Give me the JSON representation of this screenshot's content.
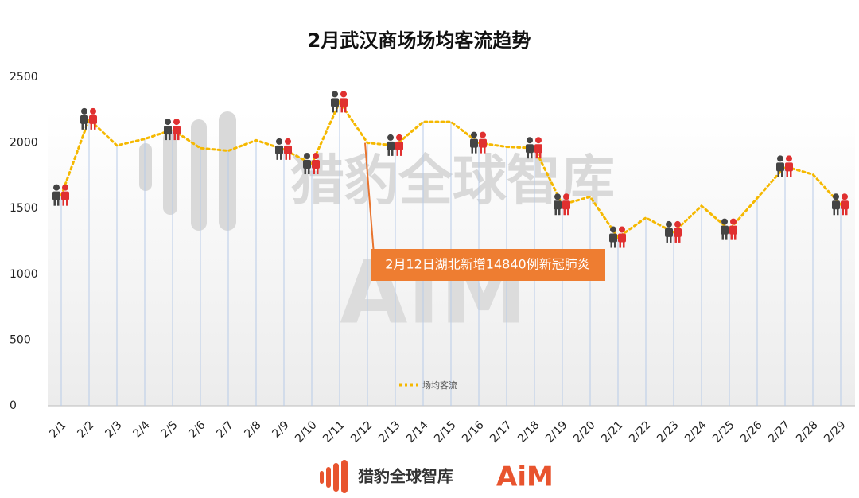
{
  "chart_data": {
    "type": "line",
    "title": "2月武汉商场场均客流趋势",
    "categories": [
      "2/1",
      "2/2",
      "2/3",
      "2/4",
      "2/5",
      "2/6",
      "2/7",
      "2/8",
      "2/9",
      "2/10",
      "2/11",
      "2/12",
      "2/13",
      "2/14",
      "2/15",
      "2/16",
      "2/17",
      "2/18",
      "2/19",
      "2/20",
      "2/21",
      "2/22",
      "2/23",
      "2/24",
      "2/25",
      "2/26",
      "2/27",
      "2/28",
      "2/29"
    ],
    "series": [
      {
        "name": "场均客流",
        "color": "#f5b800",
        "values": [
          1600,
          2180,
          1980,
          2030,
          2100,
          1960,
          1940,
          2020,
          1950,
          1840,
          2310,
          2000,
          1980,
          2160,
          2160,
          2000,
          1970,
          1960,
          1530,
          1590,
          1280,
          1430,
          1320,
          1520,
          1340,
          1580,
          1820,
          1760,
          1530
        ]
      }
    ],
    "ylim": [
      0,
      2500
    ],
    "yticks": [
      0,
      500,
      1000,
      1500,
      2000,
      2500
    ],
    "annotation": "2月12日湖北新增14840例新冠肺炎",
    "watermark": [
      "猎豹全球智库",
      "AIM"
    ],
    "footer": [
      "猎豹全球智库",
      "AiM"
    ]
  }
}
